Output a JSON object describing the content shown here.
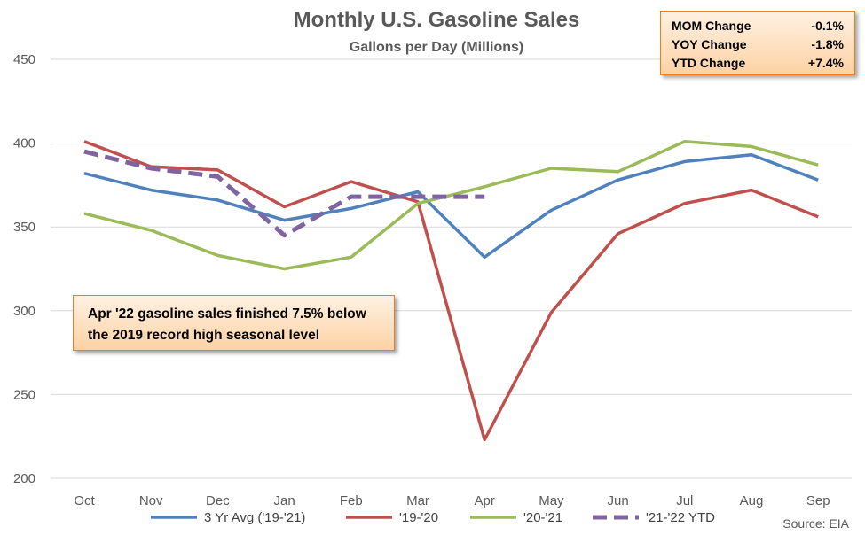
{
  "chart_data": {
    "type": "line",
    "title": "Monthly U.S. Gasoline Sales",
    "subtitle": "Gallons per Day (Millions)",
    "categories": [
      "Oct",
      "Nov",
      "Dec",
      "Jan",
      "Feb",
      "Mar",
      "Apr",
      "May",
      "Jun",
      "Jul",
      "Aug",
      "Sep"
    ],
    "ylim": [
      200,
      450
    ],
    "yticks": [
      200,
      250,
      300,
      350,
      400,
      450
    ],
    "grid": true,
    "legend_position": "bottom",
    "series": [
      {
        "name": "3 Yr Avg ('19-'21)",
        "color": "#4f81bd",
        "dashed": false,
        "values": [
          382,
          372,
          366,
          354,
          361,
          371,
          332,
          360,
          378,
          389,
          393,
          378
        ]
      },
      {
        "name": "'19-'20",
        "color": "#c0504d",
        "dashed": false,
        "values": [
          401,
          386,
          384,
          362,
          377,
          365,
          223,
          299,
          346,
          364,
          372,
          356
        ]
      },
      {
        "name": "'20-'21",
        "color": "#9bbb59",
        "dashed": false,
        "values": [
          358,
          348,
          333,
          325,
          332,
          364,
          374,
          385,
          383,
          401,
          398,
          387
        ]
      },
      {
        "name": "'21-'22 YTD",
        "color": "#8064a2",
        "dashed": true,
        "values": [
          395,
          385,
          380,
          345,
          368,
          368,
          368,
          null,
          null,
          null,
          null,
          null
        ]
      }
    ],
    "annotations": {
      "stats": [
        {
          "label": "MOM Change",
          "value": "-0.1%"
        },
        {
          "label": "YOY Change",
          "value": "-1.8%"
        },
        {
          "label": "YTD Change",
          "value": "+7.4%"
        }
      ],
      "note_line1": "Apr '22 gasoline sales finished 7.5% below",
      "note_line2": "the 2019 record high seasonal level"
    },
    "source": "Source: EIA"
  }
}
